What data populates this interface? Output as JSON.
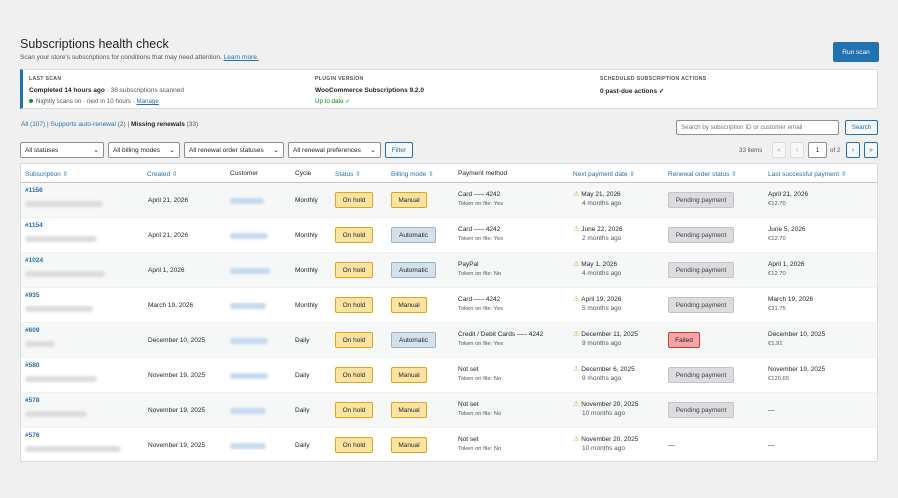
{
  "header": {
    "title": "Subscriptions health check",
    "subtitle": "Scan your store's subscriptions for conditions that may need attention.",
    "learn_more": "Learn more.",
    "run_scan": "Run scan"
  },
  "summary": {
    "last_scan_label": "LAST SCAN",
    "last_scan_main": "Completed 14 hours ago",
    "last_scan_count": " · 38 subscriptions scanned",
    "nightly": "Nightly scans on · next in 10 hours ·",
    "manage": "Manage",
    "plugin_label": "PLUGIN VERSION",
    "plugin_main": "WooCommerce Subscriptions 9.2.0",
    "plugin_status": "Up to date ✓",
    "scheduled_label": "SCHEDULED SUBSCRIPTION ACTIONS",
    "scheduled_main": "0 past-due actions ✓"
  },
  "views": {
    "all": "All (107)",
    "sep1": " | ",
    "auto": "Supports auto-renewal",
    "auto_count": " (2)",
    "sep2": " | ",
    "missing": "Missing renewals",
    "missing_count": " (33)"
  },
  "search": {
    "placeholder": "Search by subscription ID or customer email",
    "button": "Search"
  },
  "filters": {
    "statuses": "All statuses",
    "billing": "All billing modes",
    "renewal_status": "All renewal order statuses",
    "renewal_pref": "All renewal preferences",
    "filter_button": "Filter"
  },
  "pagination": {
    "items": "33 items",
    "first": "«",
    "prev": "‹",
    "current": "1",
    "of": "of 2",
    "next": "›",
    "last": "»"
  },
  "columns": {
    "subscription": "Subscription ⇳",
    "created": "Created ⇳",
    "customer": "Customer",
    "cycle": "Cycle",
    "status": "Status ⇳",
    "billing": "Billing mode ⇳",
    "payment": "Payment method",
    "next_payment": "Next payment date ⇳",
    "renewal": "Renewal order status ⇳",
    "last_payment": "Last successful payment ⇳"
  },
  "rows": [
    {
      "id": "#1156",
      "created": "April 21, 2026",
      "cycle": "Monthly",
      "status": "On hold",
      "billing": "Manual",
      "pm": "Card —– 4242",
      "token": "Token on file: Yes",
      "next": "May 21, 2026",
      "next_rel": "4 months ago",
      "renewal": "Pending payment",
      "last": "April 21, 2026",
      "amount": "€12.70"
    },
    {
      "id": "#1154",
      "created": "April 21, 2026",
      "cycle": "Monthly",
      "status": "On hold",
      "billing": "Automatic",
      "pm": "Card —– 4242",
      "token": "Token on file: Yes",
      "next": "June 22, 2026",
      "next_rel": "2 months ago",
      "renewal": "Pending payment",
      "last": "June 5, 2026",
      "amount": "€12.70"
    },
    {
      "id": "#1024",
      "created": "April 1, 2026",
      "cycle": "Monthly",
      "status": "On hold",
      "billing": "Automatic",
      "pm": "PayPal",
      "token": "Token on file: No",
      "next": "May 1, 2026",
      "next_rel": "4 months ago",
      "renewal": "Pending payment",
      "last": "April 1, 2026",
      "amount": "€12.70"
    },
    {
      "id": "#935",
      "created": "March 19, 2026",
      "cycle": "Monthly",
      "status": "On hold",
      "billing": "Manual",
      "pm": "Card —– 4242",
      "token": "Token on file: Yes",
      "next": "April 19, 2026",
      "next_rel": "5 months ago",
      "renewal": "Pending payment",
      "last": "March 19, 2026",
      "amount": "€31.75"
    },
    {
      "id": "#609",
      "created": "December 10, 2025",
      "cycle": "Daily",
      "status": "On hold",
      "billing": "Automatic",
      "pm": "Credit / Debit Cards —– 4242",
      "token": "Token on file: Yes",
      "next": "December 11, 2025",
      "next_rel": "9 months ago",
      "renewal": "Failed",
      "last": "December 10, 2025",
      "amount": "€1.91"
    },
    {
      "id": "#580",
      "created": "November 19, 2025",
      "cycle": "Daily",
      "status": "On hold",
      "billing": "Manual",
      "pm": "Not set",
      "token": "Token on file: No",
      "next": "December 6, 2025",
      "next_rel": "9 months ago",
      "renewal": "Pending payment",
      "last": "November 19, 2025",
      "amount": "€120.65"
    },
    {
      "id": "#578",
      "created": "November 19, 2025",
      "cycle": "Daily",
      "status": "On hold",
      "billing": "Manual",
      "pm": "Not set",
      "token": "Token on file: No",
      "next": "November 20, 2025",
      "next_rel": "10 months ago",
      "renewal": "Pending payment",
      "last": "—",
      "amount": ""
    },
    {
      "id": "#576",
      "created": "November 19, 2025",
      "cycle": "Daily",
      "status": "On hold",
      "billing": "Manual",
      "pm": "Not set",
      "token": "Token on file: No",
      "next": "November 20, 2025",
      "next_rel": "10 months ago",
      "renewal": "—",
      "last": "—",
      "amount": ""
    }
  ],
  "icons": {
    "warning": "warning-icon",
    "sort": "sort-icon",
    "chevron": "chevron-down-icon"
  },
  "colors": {
    "accent": "#2271b1",
    "on_hold": "#fce3a2",
    "automatic": "#d4e0ea",
    "failed": "#f5a5a5",
    "pending": "#dcdcde"
  }
}
